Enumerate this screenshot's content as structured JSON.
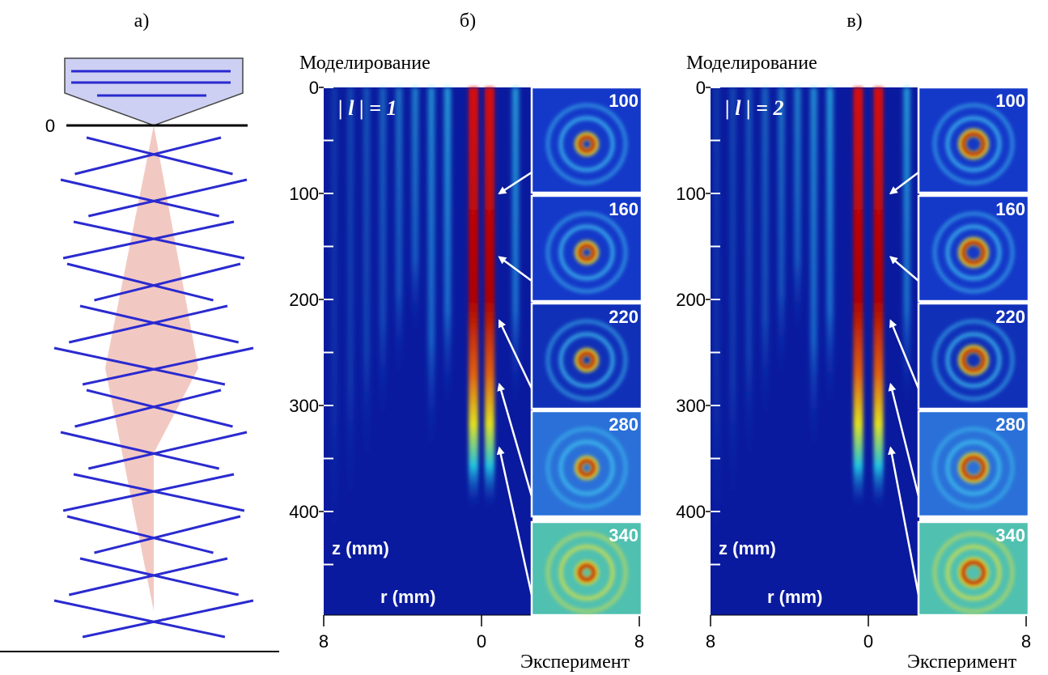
{
  "panel_a": {
    "label": "а)",
    "zero_label": "0"
  },
  "panel_b": {
    "label": "б)",
    "top_label": "Моделирование",
    "bottom_label": "Эксперимент",
    "order_label": "| l | = 1",
    "z_label": "z (mm)",
    "r_label": "r (mm)",
    "yticks": [
      0,
      100,
      200,
      300,
      400
    ],
    "xticks": [
      8,
      0,
      8
    ],
    "insets": [
      100,
      160,
      220,
      280,
      340
    ]
  },
  "panel_c": {
    "label": "в)",
    "top_label": "Моделирование",
    "bottom_label": "Эксперимент",
    "order_label": "| l | = 2",
    "z_label": "z (mm)",
    "r_label": "r (mm)",
    "yticks": [
      0,
      100,
      200,
      300,
      400
    ],
    "xticks": [
      8,
      0,
      8
    ],
    "insets": [
      100,
      160,
      220,
      280,
      340
    ]
  }
}
